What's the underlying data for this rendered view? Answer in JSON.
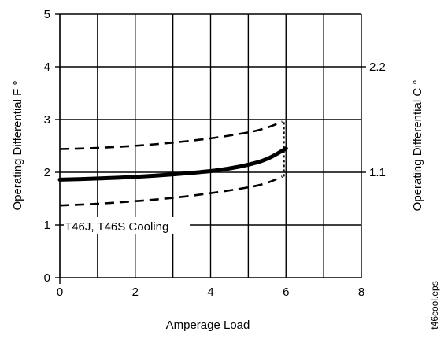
{
  "chart_data": {
    "type": "line",
    "xlabel": "Amperage Load",
    "ylabel": "Operating Differential F °",
    "ylabel_right": "Operating Differential C °",
    "xlim": [
      0,
      8
    ],
    "ylim": [
      0,
      5
    ],
    "x_ticks": [
      "0",
      "2",
      "4",
      "6",
      "8"
    ],
    "y_ticks": [
      "0",
      "1",
      "2",
      "3",
      "4",
      "5"
    ],
    "y_right_ticks": [
      {
        "label": "1.1",
        "at": 2
      },
      {
        "label": "2.2",
        "at": 4
      }
    ],
    "grid": true,
    "annotation": "T46J, T46S Cooling",
    "file_label": "t46cool.eps",
    "series": [
      {
        "style": "dashed",
        "x": [
          0,
          1,
          2,
          3,
          4,
          5,
          5.5,
          5.9
        ],
        "y": [
          2.44,
          2.46,
          2.5,
          2.56,
          2.64,
          2.75,
          2.84,
          2.96
        ]
      },
      {
        "style": "solid-thick",
        "x": [
          0,
          1,
          2,
          3,
          4,
          4.5,
          5,
          5.5,
          6
        ],
        "y": [
          1.86,
          1.88,
          1.91,
          1.96,
          2.02,
          2.07,
          2.14,
          2.24,
          2.45
        ]
      },
      {
        "style": "dashed",
        "x": [
          0,
          1,
          2,
          3,
          4,
          5,
          5.5,
          5.9
        ],
        "y": [
          1.37,
          1.4,
          1.45,
          1.51,
          1.6,
          1.71,
          1.79,
          1.92
        ]
      }
    ],
    "end_connector": {
      "x": 5.95,
      "y_from": 1.92,
      "y_to": 3.0
    }
  }
}
